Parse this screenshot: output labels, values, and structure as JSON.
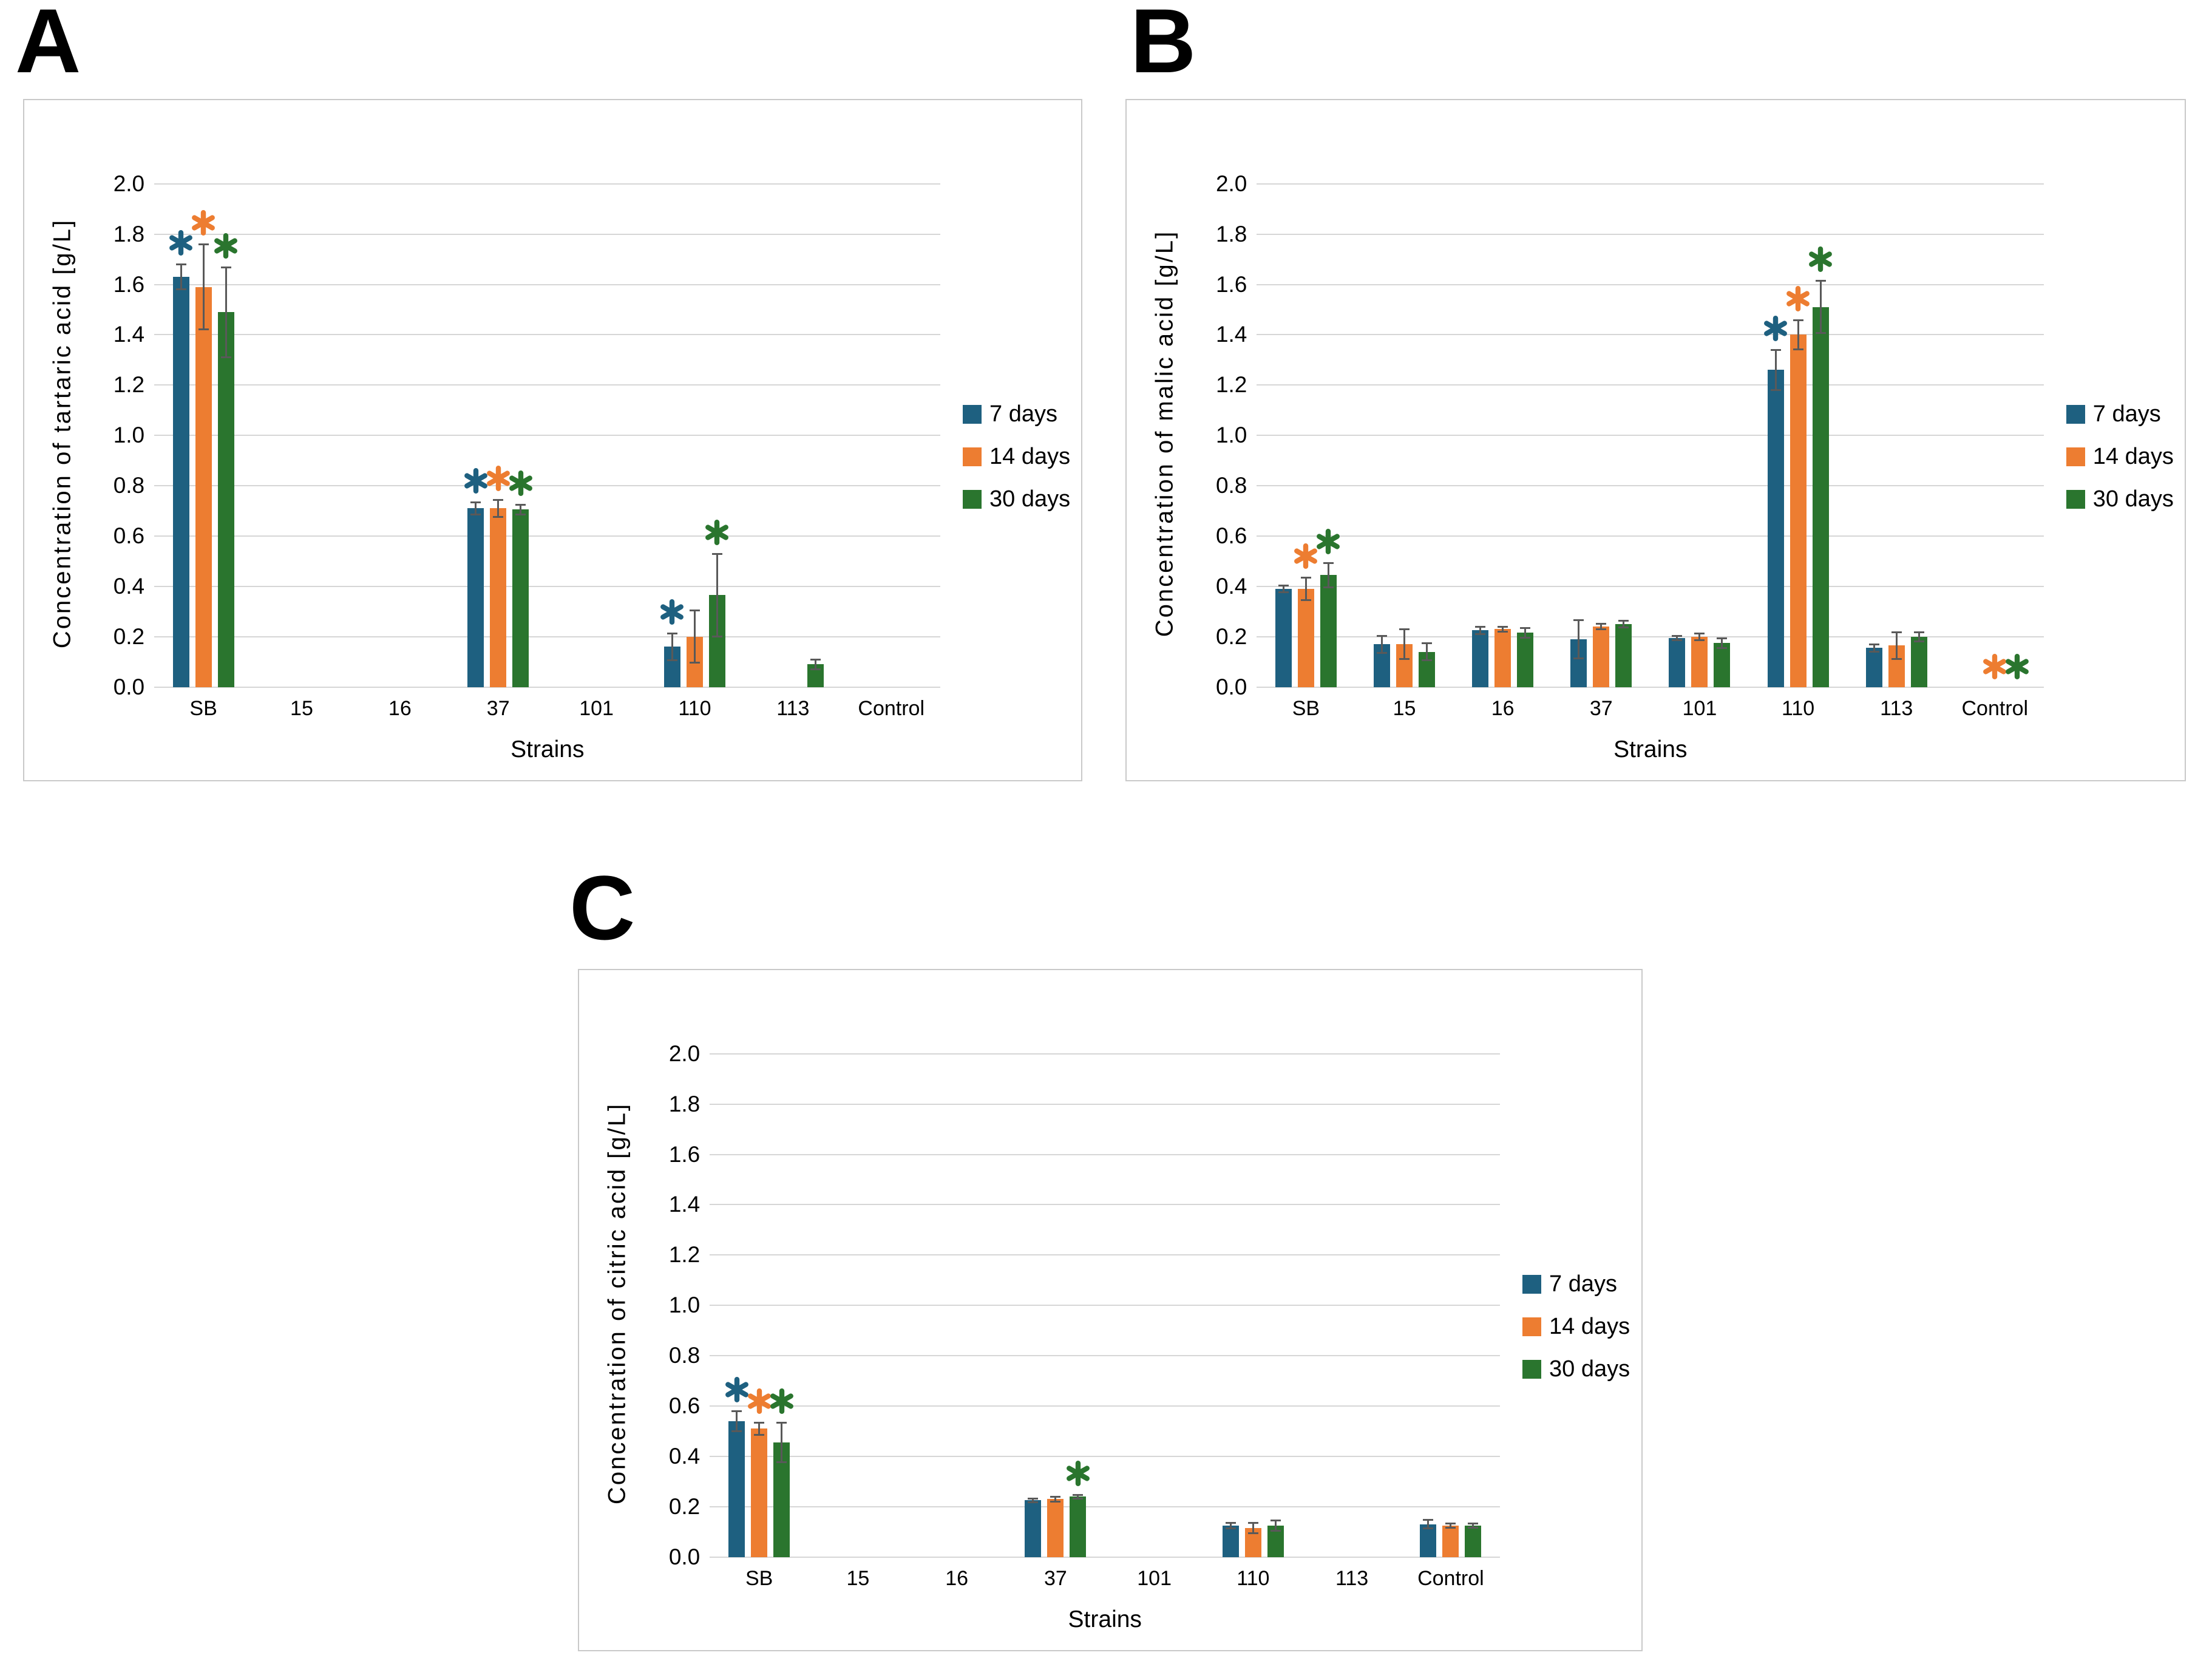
{
  "figure": {
    "background": "#ffffff",
    "panel_letters": [
      "A",
      "B",
      "C"
    ]
  },
  "colors": {
    "series_7_days": "#1E6080",
    "series_14_days": "#ED7D31",
    "series_30_days": "#2A752E",
    "error_bar": "#595959",
    "gridline": "#D6D6D6",
    "panel_border": "#C9C9C9",
    "text": "#000000"
  },
  "legend": {
    "position": "right",
    "items": [
      {
        "label": "7 days",
        "color": "#1E6080"
      },
      {
        "label": "14 days",
        "color": "#ED7D31"
      },
      {
        "label": "30 days",
        "color": "#2A752E"
      }
    ]
  },
  "chart_data": [
    {
      "type": "bar",
      "panel_label": "A",
      "ylabel": "Concentration of tartaric acid [g/L]",
      "xlabel": "Strains",
      "ylim": [
        0,
        2.0
      ],
      "ytick_step": 0.2,
      "grid": true,
      "legend_position": "right",
      "categories": [
        "SB",
        "15",
        "16",
        "37",
        "101",
        "110",
        "113",
        "Control"
      ],
      "series": [
        {
          "name": "7 days",
          "color": "#1E6080",
          "values": [
            1.63,
            0,
            0,
            0.71,
            0,
            0.16,
            0,
            0
          ],
          "errors": [
            0.05,
            0,
            0,
            0.025,
            0,
            0.055,
            0,
            0
          ],
          "sig": [
            true,
            false,
            false,
            true,
            false,
            true,
            false,
            false
          ]
        },
        {
          "name": "14 days",
          "color": "#ED7D31",
          "values": [
            1.59,
            0,
            0,
            0.71,
            0,
            0.2,
            0,
            0
          ],
          "errors": [
            0.17,
            0,
            0,
            0.035,
            0,
            0.105,
            0,
            0
          ],
          "sig": [
            true,
            false,
            false,
            true,
            false,
            false,
            false,
            false
          ]
        },
        {
          "name": "30 days",
          "color": "#2A752E",
          "values": [
            1.49,
            0,
            0,
            0.705,
            0,
            0.365,
            0.09,
            0
          ],
          "errors": [
            0.18,
            0,
            0,
            0.02,
            0,
            0.165,
            0.02,
            0
          ],
          "sig": [
            true,
            false,
            false,
            true,
            false,
            true,
            false,
            false
          ]
        }
      ]
    },
    {
      "type": "bar",
      "panel_label": "B",
      "ylabel": "Concentration of malic acid [g/L]",
      "xlabel": "Strains",
      "ylim": [
        0,
        2.0
      ],
      "ytick_step": 0.2,
      "grid": true,
      "legend_position": "right",
      "categories": [
        "SB",
        "15",
        "16",
        "37",
        "101",
        "110",
        "113",
        "Control"
      ],
      "series": [
        {
          "name": "7 days",
          "color": "#1E6080",
          "values": [
            0.39,
            0.17,
            0.225,
            0.19,
            0.195,
            1.26,
            0.155,
            0
          ],
          "errors": [
            0.015,
            0.035,
            0.015,
            0.078,
            0.01,
            0.08,
            0.015,
            0
          ],
          "sig": [
            false,
            false,
            false,
            false,
            false,
            true,
            false,
            false
          ]
        },
        {
          "name": "14 days",
          "color": "#ED7D31",
          "values": [
            0.39,
            0.17,
            0.23,
            0.24,
            0.2,
            1.4,
            0.165,
            0
          ],
          "errors": [
            0.045,
            0.06,
            0.01,
            0.012,
            0.015,
            0.06,
            0.055,
            0
          ],
          "sig": [
            true,
            false,
            false,
            false,
            false,
            true,
            false,
            true
          ]
        },
        {
          "name": "30 days",
          "color": "#2A752E",
          "values": [
            0.445,
            0.14,
            0.215,
            0.25,
            0.175,
            1.51,
            0.2,
            0
          ],
          "errors": [
            0.05,
            0.035,
            0.02,
            0.015,
            0.02,
            0.105,
            0.02,
            0
          ],
          "sig": [
            true,
            false,
            false,
            false,
            false,
            true,
            false,
            true
          ]
        }
      ]
    },
    {
      "type": "bar",
      "panel_label": "C",
      "ylabel": "Concentration of citric acid [g/L]",
      "xlabel": "Strains",
      "ylim": [
        0,
        2.0
      ],
      "ytick_step": 0.2,
      "grid": true,
      "legend_position": "right",
      "categories": [
        "SB",
        "15",
        "16",
        "37",
        "101",
        "110",
        "113",
        "Control"
      ],
      "series": [
        {
          "name": "7 days",
          "color": "#1E6080",
          "values": [
            0.54,
            0,
            0,
            0.225,
            0,
            0.125,
            0,
            0.13
          ],
          "errors": [
            0.04,
            0,
            0,
            0.008,
            0,
            0.012,
            0,
            0.018
          ],
          "sig": [
            true,
            false,
            false,
            false,
            false,
            false,
            false,
            false
          ]
        },
        {
          "name": "14 days",
          "color": "#ED7D31",
          "values": [
            0.51,
            0,
            0,
            0.23,
            0,
            0.115,
            0,
            0.125
          ],
          "errors": [
            0.025,
            0,
            0,
            0.01,
            0,
            0.022,
            0,
            0.01
          ],
          "sig": [
            true,
            false,
            false,
            false,
            false,
            false,
            false,
            false
          ]
        },
        {
          "name": "30 days",
          "color": "#2A752E",
          "values": [
            0.455,
            0,
            0,
            0.24,
            0,
            0.125,
            0,
            0.125
          ],
          "errors": [
            0.08,
            0,
            0,
            0.008,
            0,
            0.022,
            0,
            0.01
          ],
          "sig": [
            true,
            false,
            false,
            true,
            false,
            false,
            false,
            false
          ]
        }
      ]
    }
  ]
}
